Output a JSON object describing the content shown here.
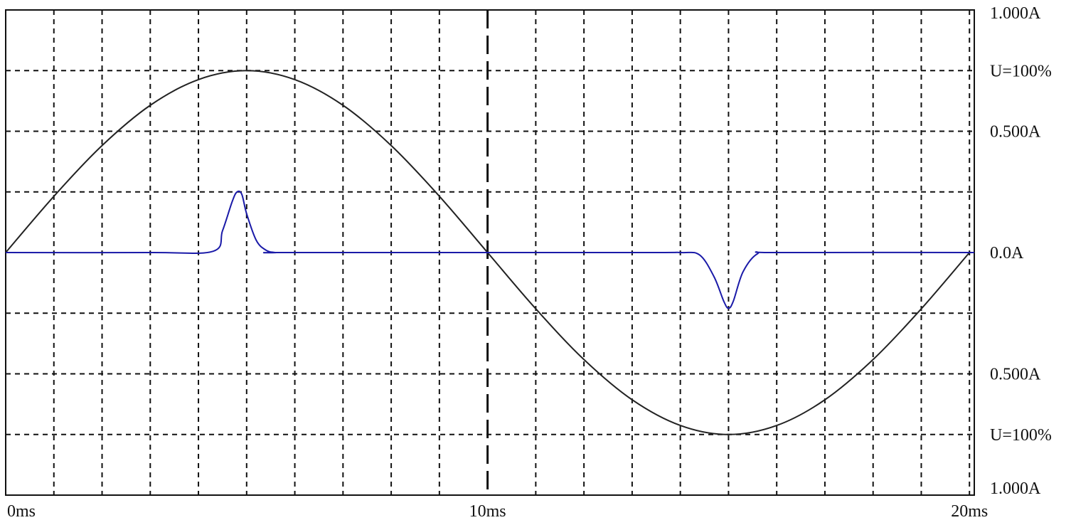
{
  "chart_data": {
    "type": "line",
    "title": "",
    "xlabel": "",
    "ylabel": "",
    "xlim": [
      0,
      20.1
    ],
    "ylim": [
      -1.0,
      1.0
    ],
    "grid": true,
    "x_tick_labels": [
      {
        "x": 0,
        "label": "0ms"
      },
      {
        "x": 10,
        "label": "10ms"
      },
      {
        "x": 20,
        "label": "20ms"
      }
    ],
    "y_tick_labels": [
      {
        "y": 1.0,
        "label": "1.000A"
      },
      {
        "y": 0.75,
        "label": "U=100%"
      },
      {
        "y": 0.5,
        "label": "0.500A"
      },
      {
        "y": 0.0,
        "label": "0.0A"
      },
      {
        "y": -0.5,
        "label": "0.500A"
      },
      {
        "y": -0.75,
        "label": "U=100%"
      },
      {
        "y": -1.0,
        "label": "1.000A"
      }
    ],
    "series": [
      {
        "color": "#222222",
        "x": [
          0,
          1,
          2,
          3,
          4,
          5,
          6,
          7,
          8,
          9,
          10,
          11,
          12,
          13,
          14,
          15,
          16,
          17,
          18,
          19,
          20
        ],
        "values": [
          0.0,
          0.232,
          0.441,
          0.607,
          0.713,
          0.75,
          0.713,
          0.607,
          0.441,
          0.232,
          0.0,
          -0.232,
          -0.441,
          -0.607,
          -0.713,
          -0.75,
          -0.713,
          -0.607,
          -0.441,
          -0.232,
          0.0
        ]
      },
      {
        "color": "#1a1aa8",
        "x": [
          0,
          3.0,
          4.3,
          4.5,
          4.7,
          4.8,
          4.9,
          5.0,
          5.2,
          5.4,
          5.6,
          6.0,
          13.0,
          14.0,
          14.4,
          14.7,
          14.9,
          15.0,
          15.1,
          15.3,
          15.6,
          16.0,
          20.1
        ],
        "values": [
          0.0,
          0.0,
          0.005,
          0.09,
          0.21,
          0.25,
          0.24,
          0.16,
          0.05,
          0.01,
          0.0,
          0.0,
          0.0,
          0.0,
          -0.01,
          -0.1,
          -0.2,
          -0.23,
          -0.2,
          -0.08,
          -0.005,
          0.0,
          0.0
        ]
      }
    ],
    "cursor_x": 10
  }
}
